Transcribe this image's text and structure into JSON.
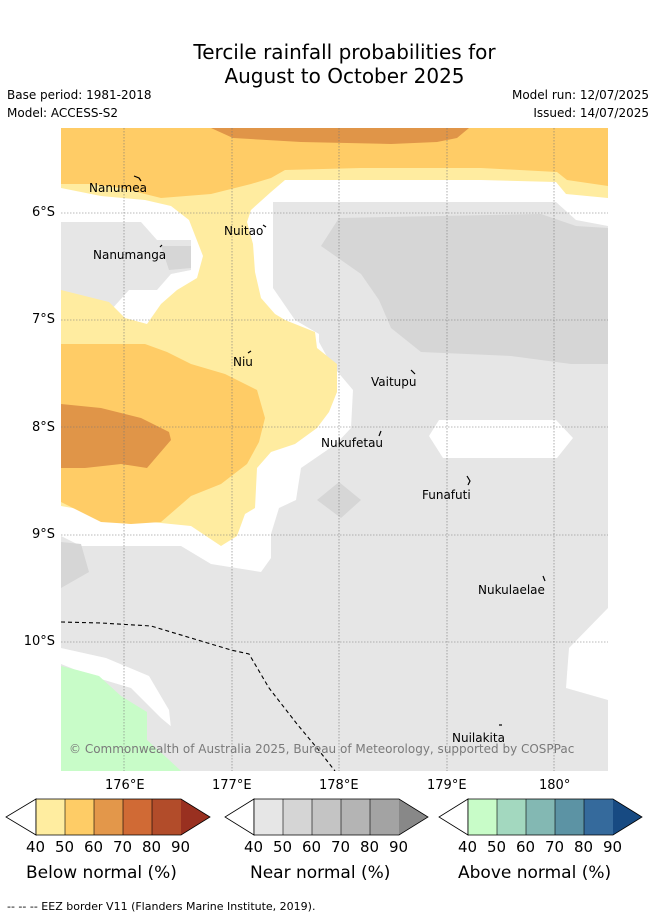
{
  "header": {
    "title_line1": "Tercile rainfall probabilities for",
    "title_line2": "August to October 2025",
    "base_period": "Base period: 1981-2018",
    "model": "Model: ACCESS-S2",
    "model_run": "Model run: 12/07/2025",
    "issued": "Issued: 14/07/2025"
  },
  "map": {
    "places": [
      {
        "name": "Nanumea"
      },
      {
        "name": "Nuitao"
      },
      {
        "name": "Nanumanga"
      },
      {
        "name": "Niu"
      },
      {
        "name": "Vaitupu"
      },
      {
        "name": "Nukufetau"
      },
      {
        "name": "Funafuti"
      },
      {
        "name": "Nukulaelae"
      },
      {
        "name": "Nuilakita"
      }
    ],
    "lat_labels": [
      "6°S",
      "7°S",
      "8°S",
      "9°S",
      "10°S"
    ],
    "lon_labels": [
      "176°E",
      "177°E",
      "178°E",
      "179°E",
      "180°"
    ],
    "copyright": "© Commonwealth of Australia 2025, Bureau of Meteorology, supported by COSPPac",
    "colors": {
      "below_40": "#ffeca0",
      "below_50": "#ffcc66",
      "below_60": "#e09548",
      "near_40": "#e6e6e6",
      "near_50": "#d6d6d6",
      "above_40": "#c8fcc8"
    }
  },
  "legend": {
    "below": {
      "title": "Below normal (%)",
      "ticks": [
        "40",
        "50",
        "60",
        "70",
        "80",
        "90"
      ],
      "colors": [
        "#ffeda0",
        "#fecc66",
        "#e3974a",
        "#d06a35",
        "#b24c2a",
        "#993020"
      ]
    },
    "near": {
      "title": "Near normal (%)",
      "ticks": [
        "40",
        "50",
        "60",
        "70",
        "80",
        "90"
      ],
      "colors": [
        "#e6e6e6",
        "#d5d5d5",
        "#c4c4c4",
        "#b4b4b4",
        "#a3a3a3",
        "#888888"
      ]
    },
    "above": {
      "title": "Above normal (%)",
      "ticks": [
        "40",
        "50",
        "60",
        "70",
        "80",
        "90"
      ],
      "colors": [
        "#c8fcc8",
        "#a3d8bf",
        "#83b8b3",
        "#5c93a4",
        "#356a9c",
        "#174a82"
      ]
    }
  },
  "footer": {
    "eez_note": "-- -- -- EEZ border V11 (Flanders Marine Institute, 2019)."
  }
}
